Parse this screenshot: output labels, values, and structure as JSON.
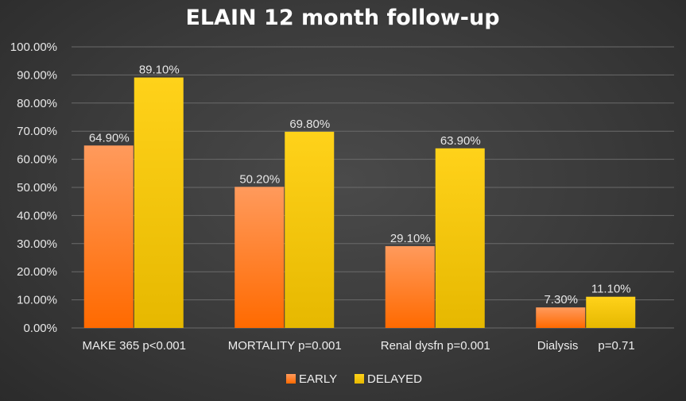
{
  "chart_data": {
    "type": "bar",
    "title": "ELAIN 12 month follow-up",
    "categories": [
      "MAKE 365 p<0.001",
      "MORTALITY p=0.001",
      "Renal dysfn p=0.001",
      "Dialysis      p=0.71"
    ],
    "series": [
      {
        "name": "EARLY",
        "values": [
          64.9,
          50.2,
          29.1,
          7.3
        ],
        "labels": [
          "64.90%",
          "50.20%",
          "29.10%",
          "7.30%"
        ],
        "color_top": "#ff9a5c",
        "color_bottom": "#ff6a00"
      },
      {
        "name": "DELAYED",
        "values": [
          89.1,
          69.8,
          63.9,
          11.1
        ],
        "labels": [
          "89.10%",
          "69.80%",
          "63.90%",
          "11.10%"
        ],
        "color_top": "#ffd21a",
        "color_bottom": "#e6b800"
      }
    ],
    "ylim": [
      0,
      100
    ],
    "yticks": [
      "0.00%",
      "10.00%",
      "20.00%",
      "30.00%",
      "40.00%",
      "50.00%",
      "60.00%",
      "70.00%",
      "80.00%",
      "90.00%",
      "100.00%"
    ],
    "grid": true,
    "legend_position": "bottom-center"
  }
}
